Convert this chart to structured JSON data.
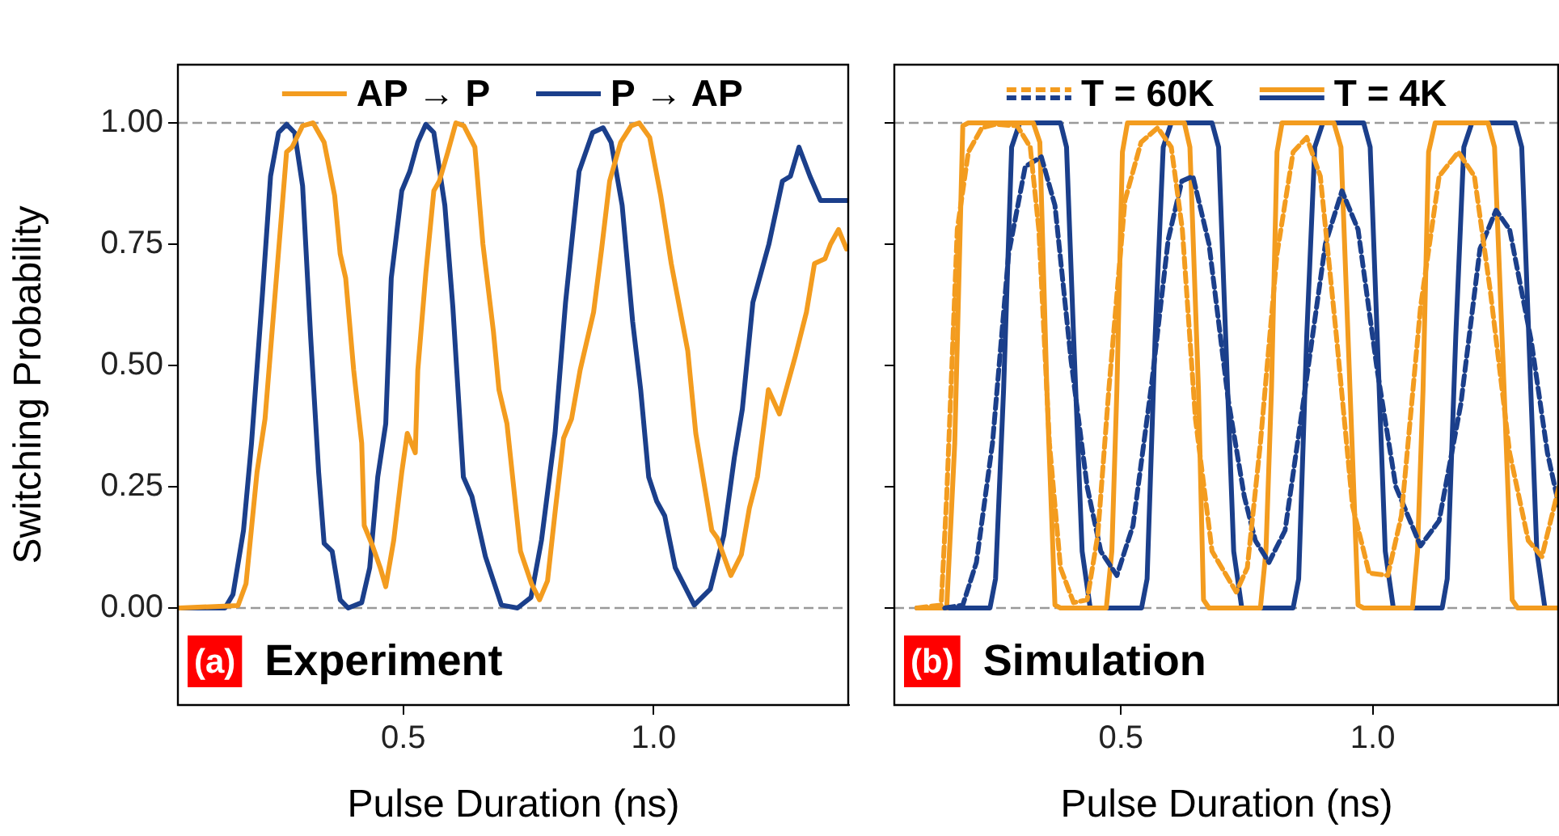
{
  "chart_data": [
    {
      "type": "line",
      "xlabel": "Pulse Duration (ns)",
      "ylabel": "Switching Probability",
      "xlim": [
        0.05,
        1.39
      ],
      "ylim": [
        -0.2,
        1.12
      ],
      "xticks": [
        0.5,
        {
          "value": 1,
          "label": "1.0"
        }
      ],
      "yticks": [
        {
          "value": 0,
          "label": "0.00"
        },
        {
          "value": 0.25,
          "label": "0.25"
        },
        {
          "value": 0.5,
          "label": "0.50"
        },
        {
          "value": 0.75,
          "label": "0.75"
        },
        {
          "value": 1,
          "label": "1.00"
        }
      ],
      "legend": "top",
      "marker": "none",
      "line_style": "solid",
      "ref_lines": [
        {
          "axis": "y",
          "value": 0,
          "color": "#999999",
          "line_style": "dashed"
        },
        {
          "axis": "y",
          "value": 1,
          "color": "#999999",
          "line_style": "dashed"
        }
      ],
      "annotations": [
        "(a)",
        "Experiment"
      ],
      "series": [
        {
          "name": "AP → P",
          "color": "#f39c1f",
          "x": [
            0.053,
            0.17,
            0.186,
            0.208,
            0.224,
            0.267,
            0.278,
            0.299,
            0.32,
            0.342,
            0.363,
            0.374,
            0.385,
            0.401,
            0.417,
            0.422,
            0.438,
            0.454,
            0.465,
            0.481,
            0.497,
            0.508,
            0.524,
            0.529,
            0.545,
            0.561,
            0.572,
            0.589,
            0.605,
            0.621,
            0.643,
            0.659,
            0.68,
            0.691,
            0.707,
            0.734,
            0.756,
            0.772,
            0.788,
            0.804,
            0.82,
            0.836,
            0.853,
            0.88,
            0.896,
            0.912,
            0.934,
            0.955,
            0.971,
            0.992,
            1.014,
            1.035,
            1.046,
            1.068,
            1.084,
            1.1,
            1.116,
            1.127,
            1.154,
            1.175,
            1.191,
            1.207,
            1.229,
            1.251,
            1.267,
            1.283,
            1.305,
            1.321,
            1.342,
            1.353,
            1.369,
            1.385
          ],
          "values": [
            0,
            0.005,
            0.05,
            0.28,
            0.39,
            0.94,
            0.95,
            0.994,
            1,
            0.96,
            0.85,
            0.73,
            0.68,
            0.49,
            0.34,
            0.17,
            0.13,
            0.083,
            0.044,
            0.14,
            0.28,
            0.36,
            0.32,
            0.49,
            0.69,
            0.86,
            0.88,
            0.94,
            1,
            0.994,
            0.95,
            0.75,
            0.57,
            0.45,
            0.38,
            0.117,
            0.05,
            0.017,
            0.056,
            0.206,
            0.35,
            0.39,
            0.49,
            0.61,
            0.74,
            0.88,
            0.96,
            0.994,
            1,
            0.97,
            0.85,
            0.71,
            0.65,
            0.53,
            0.36,
            0.26,
            0.16,
            0.144,
            0.067,
            0.11,
            0.206,
            0.27,
            0.45,
            0.4,
            0.46,
            0.52,
            0.61,
            0.71,
            0.72,
            0.75,
            0.78,
            0.74
          ]
        },
        {
          "name": "P → AP",
          "color": "#1b3f8b",
          "x": [
            0.053,
            0.144,
            0.16,
            0.181,
            0.197,
            0.219,
            0.235,
            0.251,
            0.267,
            0.283,
            0.299,
            0.315,
            0.331,
            0.342,
            0.358,
            0.374,
            0.39,
            0.417,
            0.433,
            0.449,
            0.465,
            0.476,
            0.497,
            0.513,
            0.529,
            0.545,
            0.561,
            0.583,
            0.599,
            0.62,
            0.637,
            0.664,
            0.696,
            0.728,
            0.755,
            0.776,
            0.803,
            0.824,
            0.851,
            0.878,
            0.899,
            0.915,
            0.937,
            0.958,
            0.974,
            0.99,
            1.006,
            1.022,
            1.043,
            1.081,
            1.113,
            1.14,
            1.161,
            1.177,
            1.198,
            1.23,
            1.257,
            1.273,
            1.29,
            1.312,
            1.333,
            1.39
          ],
          "values": [
            0,
            0,
            0.028,
            0.16,
            0.34,
            0.65,
            0.89,
            0.98,
            0.997,
            0.98,
            0.87,
            0.56,
            0.28,
            0.133,
            0.117,
            0.017,
            0,
            0.011,
            0.083,
            0.27,
            0.38,
            0.68,
            0.86,
            0.9,
            0.96,
            0.997,
            0.98,
            0.83,
            0.62,
            0.27,
            0.23,
            0.106,
            0.006,
            0,
            0.022,
            0.14,
            0.36,
            0.63,
            0.9,
            0.98,
            0.99,
            0.96,
            0.83,
            0.59,
            0.45,
            0.27,
            0.22,
            0.19,
            0.083,
            0.006,
            0.039,
            0.15,
            0.31,
            0.41,
            0.63,
            0.75,
            0.88,
            0.89,
            0.95,
            0.89,
            0.84,
            0.84
          ]
        }
      ]
    },
    {
      "type": "line",
      "xlabel": "Pulse Duration (ns)",
      "xlim": [
        0.05,
        1.37
      ],
      "ylim": [
        -0.2,
        1.12
      ],
      "xticks": [
        0.5,
        {
          "value": 1,
          "label": "1.0"
        }
      ],
      "yticks": [
        {
          "value": 0,
          "label": null
        },
        {
          "value": 0.25,
          "label": null
        },
        {
          "value": 0.5,
          "label": null
        },
        {
          "value": 0.75,
          "label": null
        },
        {
          "value": 1,
          "label": null
        }
      ],
      "tick_labels": "x",
      "legend": "top",
      "marker": "none",
      "ref_lines": [
        {
          "axis": "y",
          "value": 0,
          "color": "#999999",
          "line_style": "dashed"
        },
        {
          "axis": "y",
          "value": 1,
          "color": "#999999",
          "line_style": "dashed"
        }
      ],
      "annotations": [
        "(b)",
        "Simulation"
      ],
      "series": [
        {
          "name": "T = 60K",
          "color": "#f39c1f",
          "line_style": "dashed",
          "x": [
            0.095,
            0.143,
            0.154,
            0.175,
            0.197,
            0.224,
            0.251,
            0.294,
            0.32,
            0.337,
            0.358,
            0.38,
            0.406,
            0.433,
            0.454,
            0.476,
            0.508,
            0.54,
            0.573,
            0.6,
            0.622,
            0.648,
            0.681,
            0.729,
            0.751,
            0.777,
            0.81,
            0.842,
            0.869,
            0.896,
            0.928,
            0.96,
            0.993,
            1.03,
            1.057,
            1.095,
            1.132,
            1.17,
            1.202,
            1.234,
            1.272,
            1.309,
            1.336,
            1.37
          ],
          "values": [
            0,
            0.006,
            0.23,
            0.78,
            0.94,
            0.99,
            0.997,
            0.994,
            0.95,
            0.78,
            0.34,
            0.083,
            0.011,
            0.017,
            0.15,
            0.45,
            0.84,
            0.96,
            0.99,
            0.95,
            0.78,
            0.39,
            0.117,
            0.033,
            0.083,
            0.34,
            0.73,
            0.94,
            0.97,
            0.89,
            0.56,
            0.21,
            0.072,
            0.067,
            0.19,
            0.62,
            0.89,
            0.94,
            0.89,
            0.65,
            0.32,
            0.139,
            0.106,
            0.25
          ]
        },
        {
          "color": "#1b3f8b",
          "line_style": "dashed",
          "x": [
            0.15,
            0.186,
            0.213,
            0.245,
            0.277,
            0.31,
            0.342,
            0.369,
            0.401,
            0.433,
            0.46,
            0.492,
            0.524,
            0.562,
            0.594,
            0.621,
            0.643,
            0.675,
            0.713,
            0.745,
            0.767,
            0.794,
            0.826,
            0.863,
            0.906,
            0.939,
            0.971,
            1.009,
            1.046,
            1.095,
            1.132,
            1.175,
            1.213,
            1.245,
            1.272,
            1.315,
            1.347,
            1.37
          ],
          "values": [
            0,
            0.006,
            0.094,
            0.34,
            0.73,
            0.91,
            0.93,
            0.83,
            0.51,
            0.25,
            0.117,
            0.067,
            0.17,
            0.47,
            0.76,
            0.88,
            0.89,
            0.75,
            0.43,
            0.23,
            0.139,
            0.094,
            0.16,
            0.43,
            0.75,
            0.86,
            0.78,
            0.49,
            0.25,
            0.128,
            0.18,
            0.42,
            0.74,
            0.82,
            0.78,
            0.55,
            0.32,
            0.21
          ]
        },
        {
          "name": "T = 4K",
          "color": "#f39c1f",
          "line_style": "solid",
          "x": [
            0.095,
            0.154,
            0.17,
            0.186,
            0.197,
            0.326,
            0.339,
            0.353,
            0.369,
            0.38,
            0.471,
            0.482,
            0.492,
            0.503,
            0.513,
            0.626,
            0.637,
            0.654,
            0.664,
            0.675,
            0.777,
            0.788,
            0.799,
            0.81,
            0.82,
            0.923,
            0.937,
            0.955,
            0.971,
            0.982,
            1.079,
            1.089,
            1.1,
            1.111,
            1.124,
            1.229,
            1.242,
            1.261,
            1.277,
            1.288,
            1.37
          ],
          "values": [
            0,
            0,
            0.34,
            0.994,
            1,
            1,
            0.96,
            0.45,
            0.006,
            0,
            0,
            0.117,
            0.45,
            0.94,
            1,
            1,
            0.95,
            0.45,
            0.017,
            0,
            0,
            0.117,
            0.45,
            0.94,
            1,
            1,
            0.95,
            0.45,
            0.006,
            0,
            0,
            0.117,
            0.45,
            0.94,
            1,
            1,
            0.95,
            0.45,
            0.017,
            0,
            0
          ]
        },
        {
          "color": "#1b3f8b",
          "line_style": "solid",
          "x": [
            0.095,
            0.24,
            0.251,
            0.267,
            0.283,
            0.299,
            0.38,
            0.392,
            0.406,
            0.423,
            0.439,
            0.541,
            0.552,
            0.568,
            0.584,
            0.6,
            0.681,
            0.694,
            0.708,
            0.724,
            0.74,
            0.842,
            0.853,
            0.869,
            0.885,
            0.901,
            0.982,
            0.995,
            1.009,
            1.025,
            1.041,
            1.138,
            1.148,
            1.165,
            1.181,
            1.197,
            1.283,
            1.296,
            1.31,
            1.326,
            1.342,
            1.37
          ],
          "values": [
            0,
            0,
            0.06,
            0.45,
            0.95,
            1,
            1,
            0.95,
            0.56,
            0.117,
            0,
            0,
            0.06,
            0.56,
            0.95,
            1,
            1,
            0.95,
            0.56,
            0.117,
            0,
            0,
            0.06,
            0.56,
            0.95,
            1,
            1,
            0.95,
            0.56,
            0.117,
            0,
            0,
            0.06,
            0.56,
            0.95,
            1,
            1,
            0.95,
            0.56,
            0.117,
            0,
            0
          ]
        }
      ]
    }
  ]
}
